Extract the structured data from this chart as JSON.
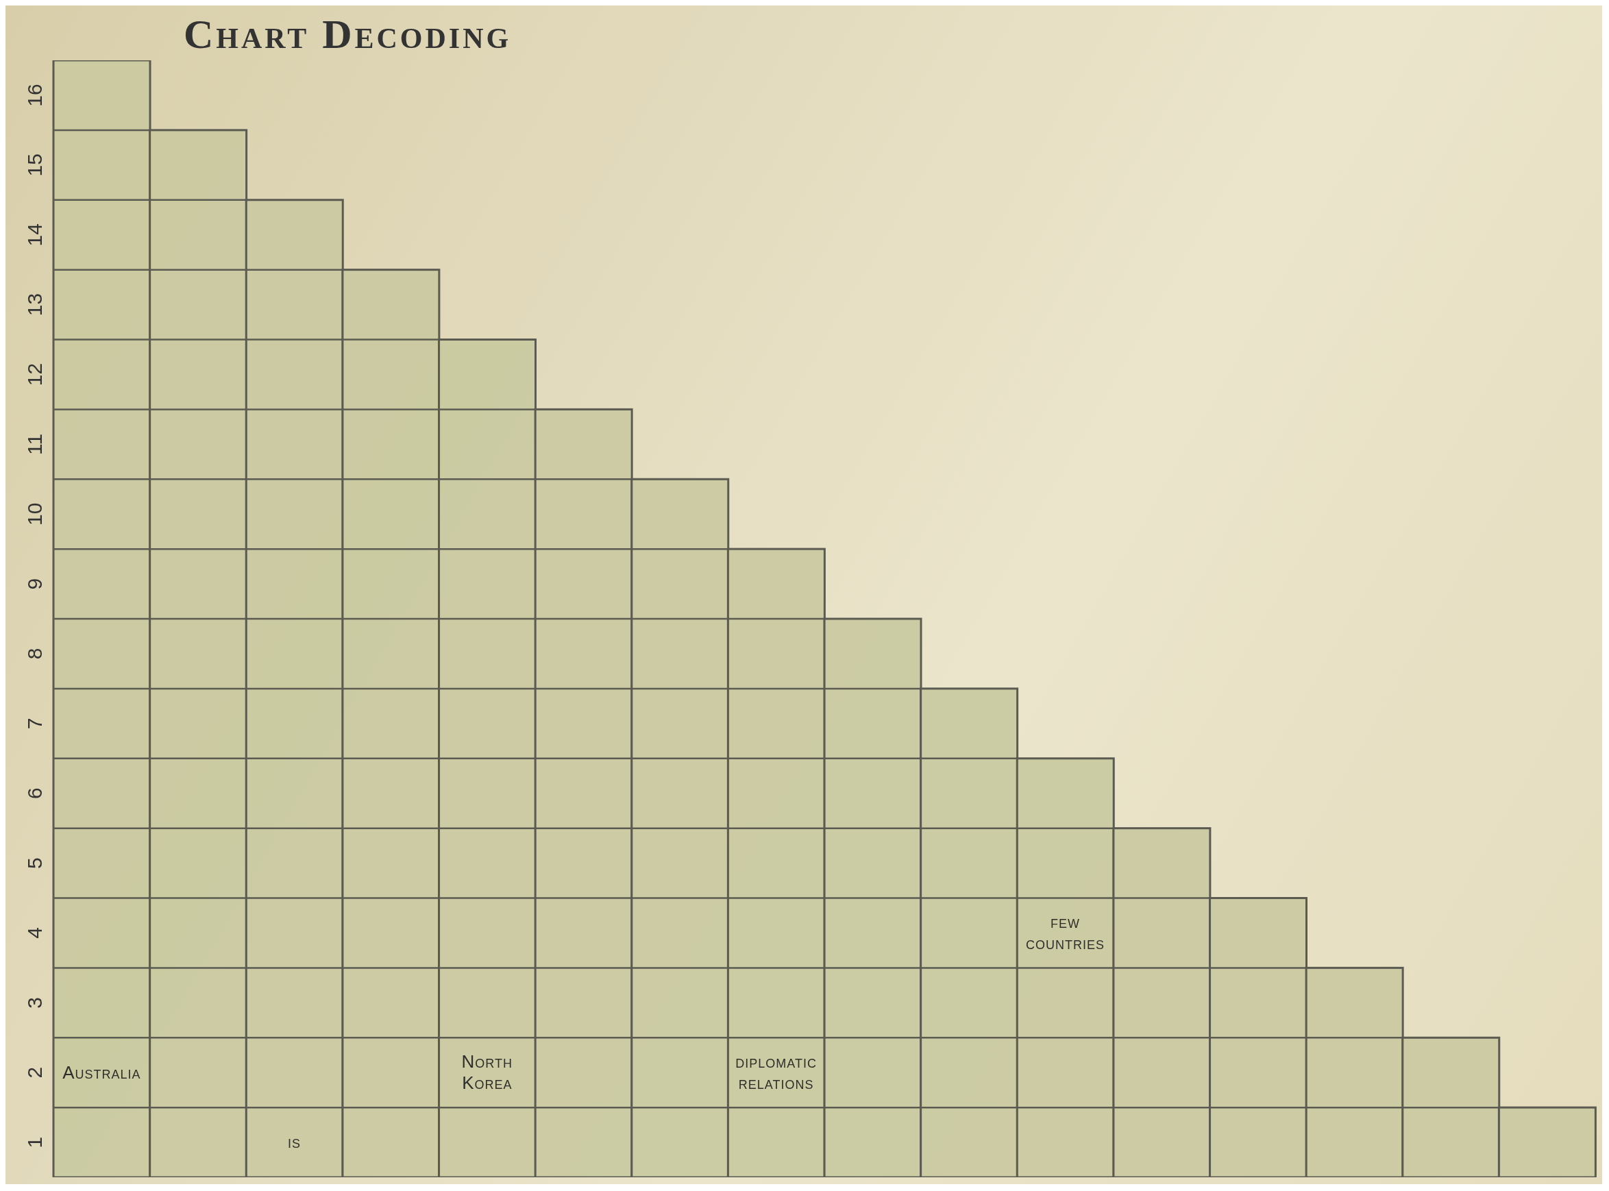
{
  "chart_data": {
    "type": "bar",
    "title": "Chart Decoding",
    "tick_labels": "y",
    "categories": [
      null,
      null,
      null,
      null,
      null,
      null,
      null,
      null,
      null,
      null,
      null,
      null,
      null,
      null,
      null,
      null
    ],
    "values": [
      16,
      15,
      14,
      13,
      12,
      11,
      10,
      9,
      8,
      7,
      6,
      5,
      4,
      3,
      2,
      1
    ],
    "base": [
      0.5,
      0.5,
      0.5,
      0.5,
      0.5,
      0.5,
      0.5,
      0.5,
      0.5,
      0.5,
      0.5,
      0.5,
      0.5,
      0.5,
      0.5,
      0.5
    ],
    "color": "#c9c9a0",
    "ylim": [
      0.5,
      16.5
    ],
    "yticks": [
      1,
      2,
      3,
      4,
      5,
      6,
      7,
      8,
      9,
      10,
      11,
      12,
      13,
      14,
      15,
      16
    ],
    "annotations": [
      "Australia",
      "is",
      "North Korea",
      "diplomatic relations",
      "few countries"
    ]
  }
}
